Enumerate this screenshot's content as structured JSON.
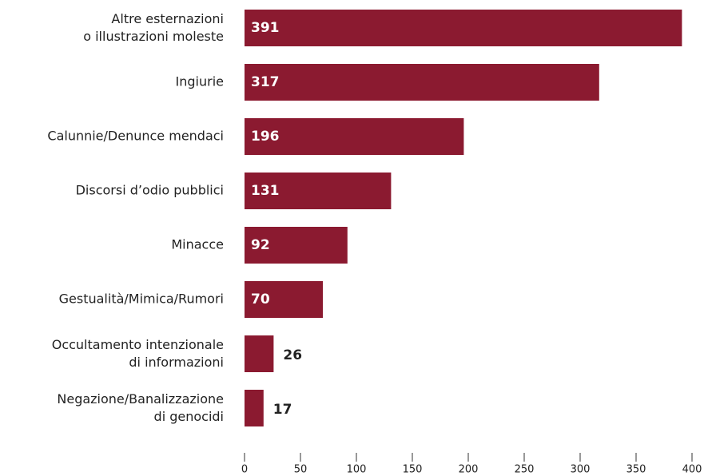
{
  "chart_data": {
    "type": "bar",
    "orientation": "horizontal",
    "categories": [
      "Altre esternazioni\no illustrazioni moleste",
      "Ingiurie",
      "Calunnie/Denunce mendaci",
      "Discorsi d’odio pubblici",
      "Minacce",
      "Gestualità/Mimica/Rumori",
      "Occultamento intenzionale\ndi informazioni",
      "Negazione/Banalizzazione\ndi genocidi"
    ],
    "values": [
      391,
      317,
      196,
      131,
      92,
      70,
      26,
      17
    ],
    "color": "#8b1a30",
    "xlim": [
      0,
      400
    ],
    "xticks": [
      0,
      50,
      100,
      150,
      200,
      250,
      300,
      350,
      400
    ]
  }
}
